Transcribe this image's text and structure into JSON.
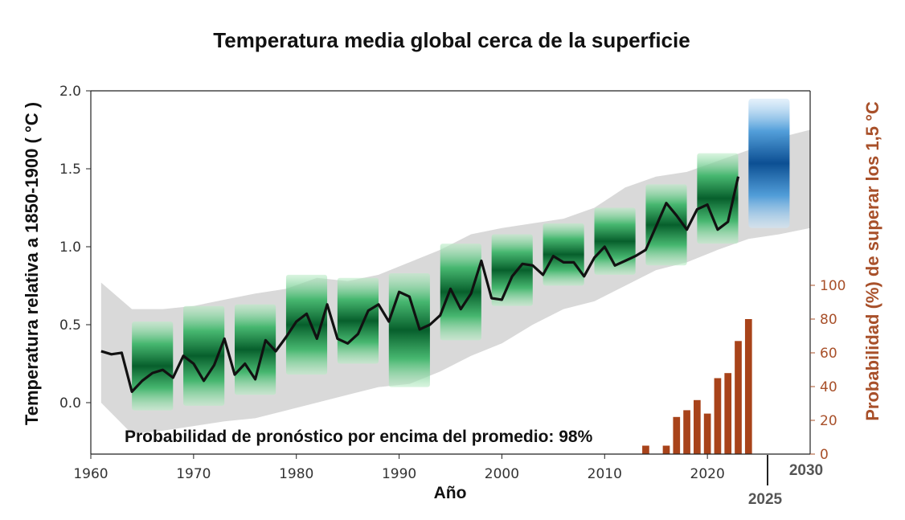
{
  "chart_data": {
    "type": "line",
    "title": "Temperatura  media global cerca de la superficie",
    "xlabel": "Año",
    "ylabel": "Temperatura relativa a 1850-1900 ( °C )",
    "y2label": "Probabilidad (%) de superar los 1,5 °C",
    "annotation": "Probabilidad de pronóstico por encima del promedio: 98%",
    "xlim": [
      1960,
      2030
    ],
    "ylim": [
      -0.33,
      2.0
    ],
    "y2lim": [
      0,
      110
    ],
    "x_ticks": [
      "1960",
      "1970",
      "1980",
      "1990",
      "2000",
      "2010",
      "2020"
    ],
    "y_ticks": [
      "0.0",
      "0.5",
      "1.0",
      "1.5",
      "2.0"
    ],
    "y2_ticks": [
      "0",
      "20",
      "40",
      "60",
      "80",
      "100"
    ],
    "extra_x_labels": [
      "2025",
      "2030"
    ],
    "grid": false,
    "colors": {
      "observed": "#111111",
      "envelope": "#d9d9d9",
      "ensemble": "#0b7a3b",
      "forecast": "#1f6fb5",
      "bars": "#a8431a",
      "y2_axis": "#a8502a"
    },
    "observed": {
      "x": [
        1961,
        1962,
        1963,
        1964,
        1965,
        1966,
        1967,
        1968,
        1969,
        1970,
        1971,
        1972,
        1973,
        1974,
        1975,
        1976,
        1977,
        1978,
        1979,
        1980,
        1981,
        1982,
        1983,
        1984,
        1985,
        1986,
        1987,
        1988,
        1989,
        1990,
        1991,
        1992,
        1993,
        1994,
        1995,
        1996,
        1997,
        1998,
        1999,
        2000,
        2001,
        2002,
        2003,
        2004,
        2005,
        2006,
        2007,
        2008,
        2009,
        2010,
        2011,
        2012,
        2013,
        2014,
        2015,
        2016,
        2017,
        2018,
        2019,
        2020,
        2021,
        2022,
        2023
      ],
      "y": [
        0.33,
        0.31,
        0.32,
        0.07,
        0.14,
        0.19,
        0.21,
        0.16,
        0.3,
        0.25,
        0.14,
        0.24,
        0.41,
        0.18,
        0.25,
        0.15,
        0.4,
        0.33,
        0.42,
        0.52,
        0.57,
        0.41,
        0.63,
        0.41,
        0.38,
        0.44,
        0.59,
        0.63,
        0.52,
        0.71,
        0.68,
        0.47,
        0.5,
        0.56,
        0.73,
        0.6,
        0.7,
        0.91,
        0.67,
        0.66,
        0.81,
        0.89,
        0.88,
        0.82,
        0.94,
        0.9,
        0.9,
        0.81,
        0.93,
        1.0,
        0.88,
        0.91,
        0.94,
        0.98,
        1.13,
        1.28,
        1.2,
        1.11,
        1.24,
        1.27,
        1.11,
        1.16,
        1.45
      ]
    },
    "envelope": {
      "x": [
        1961,
        1964,
        1967,
        1970,
        1973,
        1976,
        1979,
        1982,
        1985,
        1988,
        1991,
        1994,
        1997,
        2000,
        2003,
        2006,
        2009,
        2012,
        2015,
        2018,
        2021,
        2024,
        2027,
        2030
      ],
      "low": [
        0.0,
        -0.2,
        -0.18,
        -0.15,
        -0.12,
        -0.1,
        -0.05,
        0.0,
        0.05,
        0.1,
        0.12,
        0.2,
        0.3,
        0.38,
        0.5,
        0.6,
        0.65,
        0.75,
        0.85,
        0.9,
        0.98,
        1.05,
        1.08,
        1.12
      ],
      "high": [
        0.77,
        0.6,
        0.6,
        0.62,
        0.66,
        0.7,
        0.73,
        0.8,
        0.78,
        0.82,
        0.9,
        0.98,
        1.08,
        1.12,
        1.15,
        1.18,
        1.25,
        1.38,
        1.45,
        1.48,
        1.55,
        1.62,
        1.7,
        1.75
      ]
    },
    "ensemble": [
      {
        "start": 1964,
        "end": 1968,
        "low": -0.05,
        "high": 0.52
      },
      {
        "start": 1969,
        "end": 1973,
        "low": -0.02,
        "high": 0.62
      },
      {
        "start": 1974,
        "end": 1978,
        "low": 0.05,
        "high": 0.63
      },
      {
        "start": 1979,
        "end": 1983,
        "low": 0.18,
        "high": 0.82
      },
      {
        "start": 1984,
        "end": 1988,
        "low": 0.25,
        "high": 0.8
      },
      {
        "start": 1989,
        "end": 1993,
        "low": 0.1,
        "high": 0.83
      },
      {
        "start": 1994,
        "end": 1998,
        "low": 0.4,
        "high": 1.02
      },
      {
        "start": 1999,
        "end": 2003,
        "low": 0.62,
        "high": 1.08
      },
      {
        "start": 2004,
        "end": 2008,
        "low": 0.75,
        "high": 1.15
      },
      {
        "start": 2009,
        "end": 2013,
        "low": 0.82,
        "high": 1.25
      },
      {
        "start": 2014,
        "end": 2018,
        "low": 0.88,
        "high": 1.4
      },
      {
        "start": 2019,
        "end": 2023,
        "low": 1.02,
        "high": 1.6
      }
    ],
    "forecast": {
      "start": 2024,
      "end": 2028,
      "low": 1.12,
      "high": 1.95
    },
    "bars": {
      "x": [
        2014,
        2016,
        2017,
        2018,
        2019,
        2020,
        2021,
        2022,
        2023,
        2024
      ],
      "values": [
        5,
        5,
        22,
        26,
        32,
        24,
        45,
        48,
        67,
        80
      ]
    }
  }
}
